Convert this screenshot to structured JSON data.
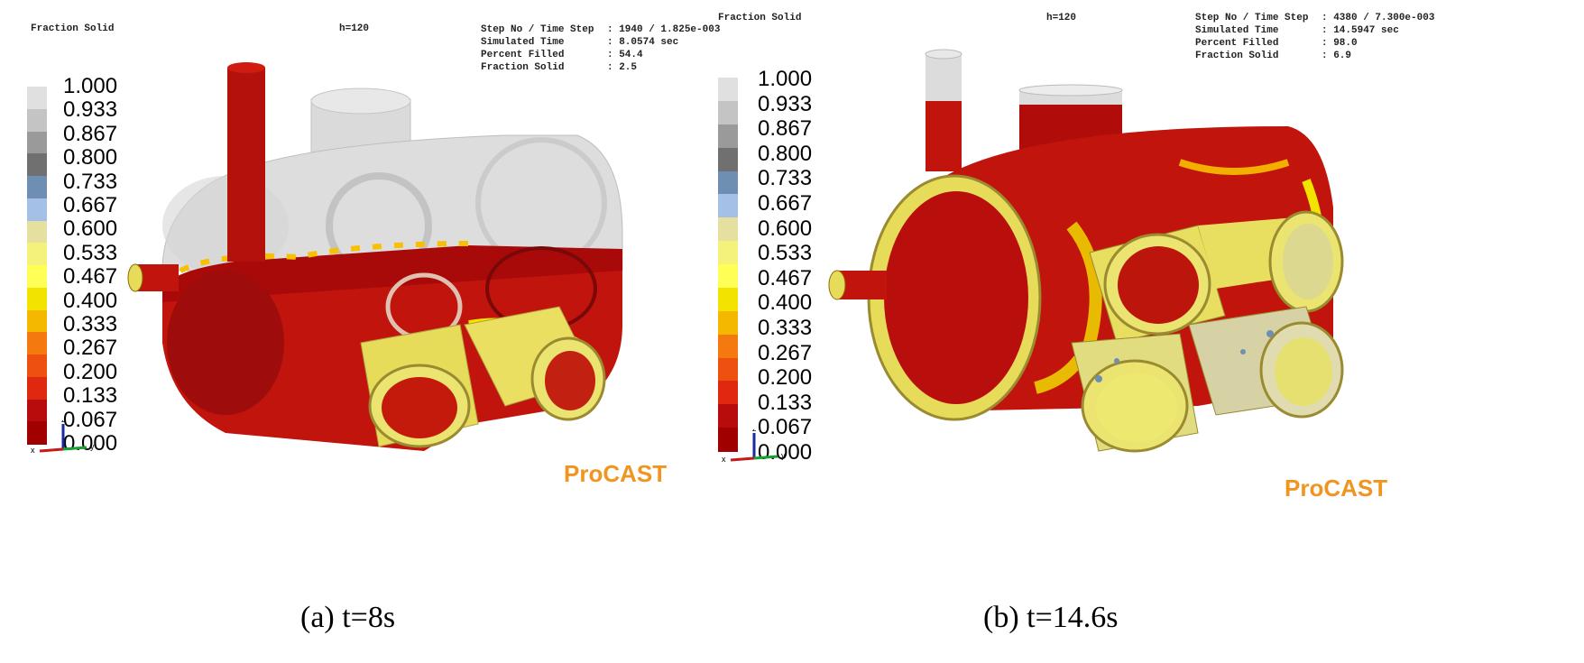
{
  "panels": [
    {
      "id": "a",
      "title": "Fraction Solid",
      "view_label": "h=120",
      "info": [
        {
          "label": "Step No / Time Step",
          "value": ": 1940 / 1.825e-003"
        },
        {
          "label": "Simulated Time",
          "value": ": 8.0574 sec"
        },
        {
          "label": "Percent Filled",
          "value": ": 54.4"
        },
        {
          "label": "Fraction Solid",
          "value": ": 2.5"
        }
      ],
      "brand": "ProCAST",
      "caption": "(a) t=8s"
    },
    {
      "id": "b",
      "title": "Fraction Solid",
      "view_label": "h=120",
      "info": [
        {
          "label": "Step No / Time Step",
          "value": ": 4380 / 7.300e-003"
        },
        {
          "label": "Simulated Time",
          "value": ": 14.5947 sec"
        },
        {
          "label": "Percent Filled",
          "value": ": 98.0"
        },
        {
          "label": "Fraction Solid",
          "value": ": 6.9"
        }
      ],
      "brand": "ProCAST",
      "caption": "(b) t=14.6s"
    }
  ],
  "legend": {
    "labels": [
      "1.000",
      "0.933",
      "0.867",
      "0.800",
      "0.733",
      "0.667",
      "0.600",
      "0.533",
      "0.467",
      "0.400",
      "0.333",
      "0.267",
      "0.200",
      "0.133",
      "0.067",
      "0.000"
    ],
    "colors": [
      "#e0e0e0",
      "#c4c4c4",
      "#9a9a9a",
      "#707070",
      "#6f8fb2",
      "#a4c0e6",
      "#e6e0a0",
      "#f4f27a",
      "#ffff55",
      "#f2e300",
      "#f4b800",
      "#f47a10",
      "#ee5010",
      "#e02810",
      "#b80c0c",
      "#a00000"
    ]
  },
  "axes": {
    "x": "x",
    "y": "y",
    "z": "z"
  },
  "colors": {
    "melt": "#c0140c",
    "solid": "#e6dc5a",
    "empty": "#d8d8d8",
    "brand": "#f0951f"
  }
}
